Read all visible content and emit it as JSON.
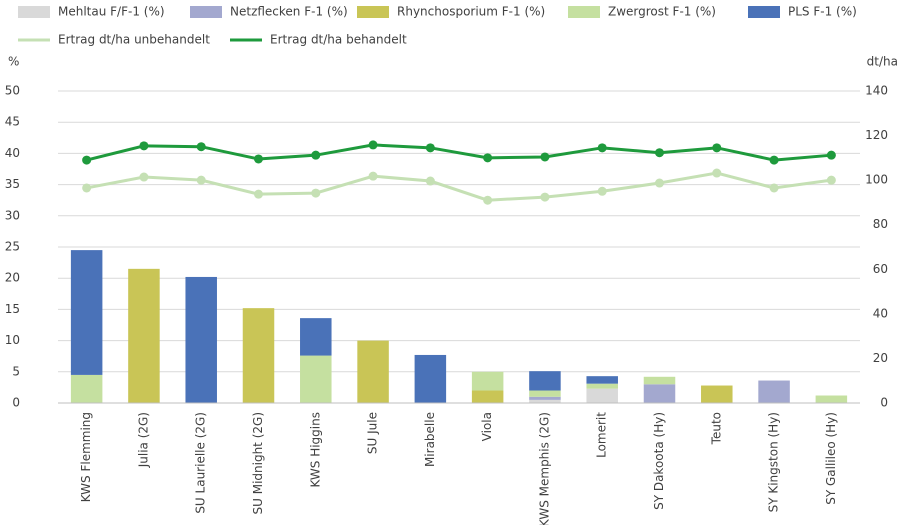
{
  "chart_data": {
    "type": "bar",
    "stacked": true,
    "y_label": "%",
    "y2_label": "dt/ha",
    "categories": [
      "KWS Flemming",
      "Julia (2G)",
      "SU Laurielle (2G)",
      "SU Midnight (2G)",
      "KWS Higgins",
      "SU Jule",
      "Mirabelle",
      "Viola",
      "KWS Memphis (2G)",
      "Lomerit",
      "SY Dakoota (Hy)",
      "Teuto",
      "SY Kingston (Hy)",
      "SY Gallileo (Hy)"
    ],
    "series": [
      {
        "name": "Mehltau F/F-1 (%)",
        "color": "#d9d9d9",
        "values": [
          0,
          0,
          0,
          0,
          0,
          0,
          0,
          0,
          0.5,
          2.3,
          0,
          0,
          0,
          0
        ]
      },
      {
        "name": "Netzflecken F-1 (%)",
        "color": "#a3a8cf",
        "values": [
          0,
          0,
          0,
          0,
          0,
          0,
          0,
          0,
          0.5,
          0,
          3.0,
          0,
          3.6,
          0
        ]
      },
      {
        "name": "Rhynchosporium F-1 (%)",
        "color": "#c9c556",
        "values": [
          0,
          21.5,
          0,
          15.2,
          0,
          10,
          0,
          2,
          0,
          0,
          0,
          2.8,
          0,
          0
        ]
      },
      {
        "name": "Zwergrost F-1 (%)",
        "color": "#c5e0a0",
        "values": [
          4.5,
          0,
          0,
          0,
          7.6,
          0,
          0,
          3,
          1,
          0.8,
          1.2,
          0,
          0,
          1.2
        ]
      },
      {
        "name": "PLS F-1 (%)",
        "color": "#4a72b8",
        "values": [
          20,
          0,
          20.2,
          0,
          6,
          0,
          7.7,
          0,
          3.1,
          1.2,
          0,
          0,
          0,
          0
        ]
      },
      {
        "name": "Ertrag dt/ha unbehandelt",
        "type": "line",
        "axis": "y2",
        "color": "#c5e0b4",
        "values": [
          96.5,
          101.4,
          100,
          93.7,
          94.2,
          101.8,
          99.6,
          91,
          92.4,
          95,
          98.7,
          103.2,
          96.5,
          100
        ]
      },
      {
        "name": "Ertrag dt/ha behandelt",
        "type": "line",
        "axis": "y2",
        "color": "#1e9a3c",
        "values": [
          109,
          115.4,
          115,
          109.5,
          111.2,
          115.8,
          114.5,
          110,
          110.4,
          114.5,
          112.3,
          114.5,
          109,
          111.2
        ]
      }
    ],
    "ylim": [
      0,
      50
    ],
    "yticks": [
      0,
      5,
      10,
      15,
      20,
      25,
      30,
      35,
      40,
      45,
      50
    ],
    "y2lim": [
      0,
      140
    ],
    "y2ticks": [
      0,
      20,
      40,
      60,
      80,
      100,
      120,
      140
    ],
    "grid": true,
    "legend": "top"
  }
}
